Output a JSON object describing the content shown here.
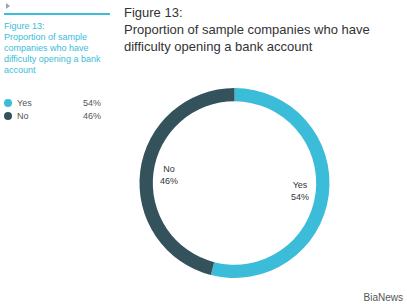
{
  "chart_data": {
    "type": "pie",
    "title": "Figure 13:\nProportion of sample companies who have\ndifficulty opening a bank account",
    "categories": [
      "Yes",
      "No"
    ],
    "values": [
      54,
      46
    ],
    "value_labels": [
      "54%",
      "46%"
    ],
    "colors": [
      "#3bbcd8",
      "#34525c"
    ],
    "data_labels": true,
    "legend": "left"
  },
  "sidebar_title": "Figure 13:\nProportion of sample companies who have difficulty opening a bank account",
  "watermark": "BiaNews"
}
